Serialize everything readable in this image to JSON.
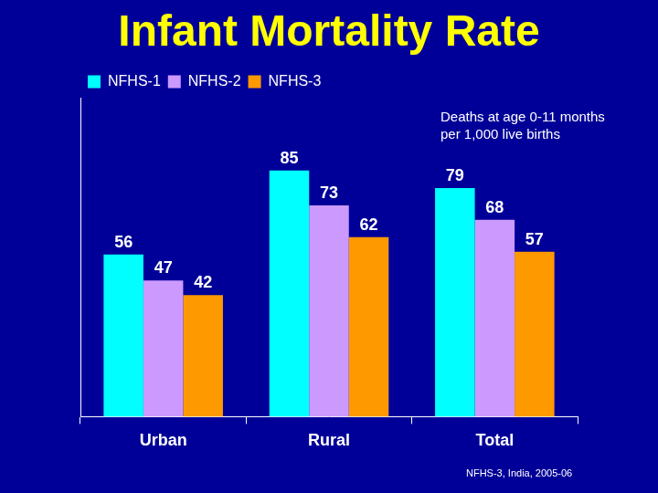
{
  "chart_data": {
    "type": "bar",
    "title": "Infant Mortality Rate",
    "annotations": [
      "Deaths at age 0-11 months per 1,000 live births",
      "NFHS-3, India, 2005-06"
    ],
    "categories": [
      "Urban",
      "Rural",
      "Total"
    ],
    "series": [
      {
        "name": "NFHS-1",
        "color": "#00ffff",
        "values": [
          56,
          85,
          79
        ]
      },
      {
        "name": "NFHS-2",
        "color": "#cc99ff",
        "values": [
          47,
          73,
          68
        ]
      },
      {
        "name": "NFHS-3",
        "color": "#ff9900",
        "values": [
          42,
          62,
          57
        ]
      }
    ],
    "ylim": [
      0,
      110
    ],
    "legend": "top-left",
    "data_labels": true,
    "tick_labels": "x",
    "grid": false
  }
}
